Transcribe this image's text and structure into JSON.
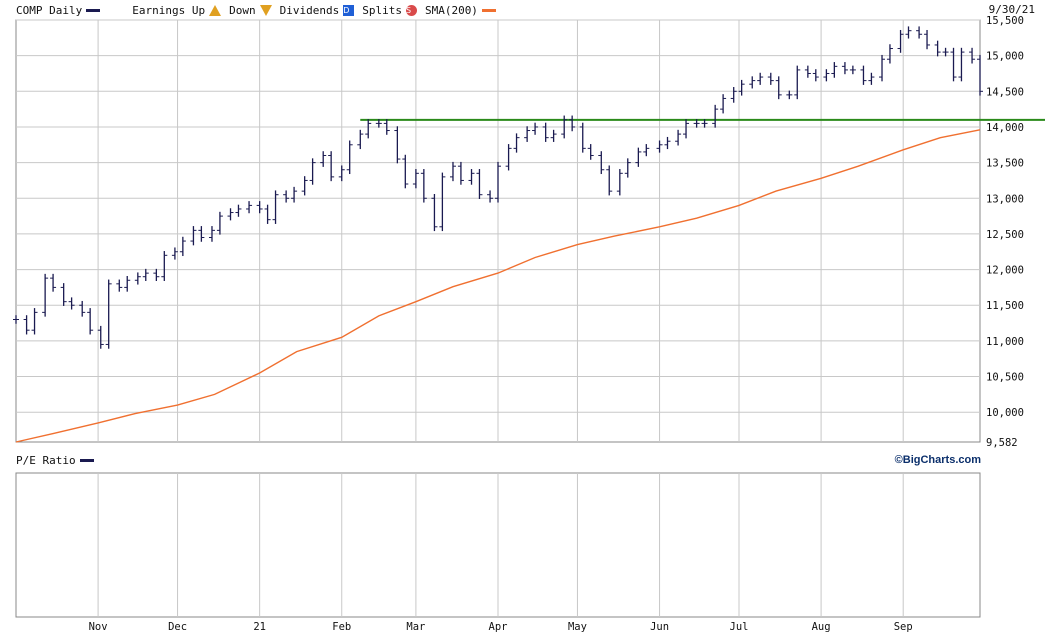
{
  "header": {
    "symbol_label": "COMP Daily",
    "earnings_label": "Earnings Up",
    "down_label": "Down",
    "earn_up_glyph": "E",
    "earn_down_glyph": "E",
    "dividends_label": "Dividends",
    "dividend_glyph": "D",
    "splits_label": "Splits",
    "split_glyph": "S",
    "sma_label": "SMA(200)",
    "date": "9/30/21"
  },
  "lower_panel": {
    "label": "P/E Ratio",
    "copyright": "©BigCharts.com"
  },
  "colors": {
    "price_bars": "#1a1a50",
    "sma": "#f07030",
    "resistance": "#2a8a1a",
    "grid": "#c8c8c8"
  },
  "chart_data": {
    "type": "line",
    "title": "COMP Daily",
    "ylabel": "",
    "xlabel": "",
    "y_ticks": [
      {
        "value": 15500,
        "label": "15,500"
      },
      {
        "value": 15000,
        "label": "15,000"
      },
      {
        "value": 14500,
        "label": "14,500"
      },
      {
        "value": 14000,
        "label": "14,000"
      },
      {
        "value": 13500,
        "label": "13,500"
      },
      {
        "value": 13000,
        "label": "13,000"
      },
      {
        "value": 12500,
        "label": "12,500"
      },
      {
        "value": 12000,
        "label": "12,000"
      },
      {
        "value": 11500,
        "label": "11,500"
      },
      {
        "value": 11000,
        "label": "11,000"
      },
      {
        "value": 10500,
        "label": "10,500"
      },
      {
        "value": 10000,
        "label": "10,000"
      },
      {
        "value": 9582,
        "label": "9,582"
      }
    ],
    "x_ticks": [
      {
        "date": "2020-11-01",
        "label": "Nov"
      },
      {
        "date": "2020-12-01",
        "label": "Dec"
      },
      {
        "date": "2021-01-01",
        "label": "21"
      },
      {
        "date": "2021-02-01",
        "label": "Feb"
      },
      {
        "date": "2021-03-01",
        "label": "Mar"
      },
      {
        "date": "2021-04-01",
        "label": "Apr"
      },
      {
        "date": "2021-05-01",
        "label": "May"
      },
      {
        "date": "2021-06-01",
        "label": "Jun"
      },
      {
        "date": "2021-07-01",
        "label": "Jul"
      },
      {
        "date": "2021-08-01",
        "label": "Aug"
      },
      {
        "date": "2021-09-01",
        "label": "Sep"
      }
    ],
    "x_range": [
      "2020-10-01",
      "2021-09-30"
    ],
    "y_range": [
      9582,
      15500
    ],
    "resistance_level": 14100,
    "grid": true,
    "series": [
      {
        "name": "COMP Daily",
        "style": "price-bars",
        "points": [
          [
            "2020-10-01",
            11300
          ],
          [
            "2020-10-05",
            11150
          ],
          [
            "2020-10-08",
            11400
          ],
          [
            "2020-10-12",
            11880
          ],
          [
            "2020-10-15",
            11750
          ],
          [
            "2020-10-19",
            11550
          ],
          [
            "2020-10-22",
            11500
          ],
          [
            "2020-10-26",
            11400
          ],
          [
            "2020-10-29",
            11150
          ],
          [
            "2020-11-02",
            10950
          ],
          [
            "2020-11-05",
            11800
          ],
          [
            "2020-11-09",
            11750
          ],
          [
            "2020-11-12",
            11850
          ],
          [
            "2020-11-16",
            11900
          ],
          [
            "2020-11-19",
            11950
          ],
          [
            "2020-11-23",
            11900
          ],
          [
            "2020-11-26",
            12200
          ],
          [
            "2020-11-30",
            12250
          ],
          [
            "2020-12-03",
            12400
          ],
          [
            "2020-12-07",
            12550
          ],
          [
            "2020-12-10",
            12450
          ],
          [
            "2020-12-14",
            12550
          ],
          [
            "2020-12-17",
            12750
          ],
          [
            "2020-12-21",
            12800
          ],
          [
            "2020-12-24",
            12850
          ],
          [
            "2020-12-28",
            12900
          ],
          [
            "2021-01-01",
            12850
          ],
          [
            "2021-01-04",
            12700
          ],
          [
            "2021-01-07",
            13050
          ],
          [
            "2021-01-11",
            13000
          ],
          [
            "2021-01-14",
            13100
          ],
          [
            "2021-01-18",
            13250
          ],
          [
            "2021-01-21",
            13500
          ],
          [
            "2021-01-25",
            13600
          ],
          [
            "2021-01-28",
            13300
          ],
          [
            "2021-02-01",
            13400
          ],
          [
            "2021-02-04",
            13750
          ],
          [
            "2021-02-08",
            13900
          ],
          [
            "2021-02-11",
            14050
          ],
          [
            "2021-02-15",
            14050
          ],
          [
            "2021-02-18",
            13950
          ],
          [
            "2021-02-22",
            13550
          ],
          [
            "2021-02-25",
            13200
          ],
          [
            "2021-03-01",
            13350
          ],
          [
            "2021-03-04",
            13000
          ],
          [
            "2021-03-08",
            12600
          ],
          [
            "2021-03-11",
            13300
          ],
          [
            "2021-03-15",
            13450
          ],
          [
            "2021-03-18",
            13250
          ],
          [
            "2021-03-22",
            13350
          ],
          [
            "2021-03-25",
            13050
          ],
          [
            "2021-03-29",
            13000
          ],
          [
            "2021-04-01",
            13450
          ],
          [
            "2021-04-05",
            13700
          ],
          [
            "2021-04-08",
            13850
          ],
          [
            "2021-04-12",
            13950
          ],
          [
            "2021-04-15",
            14000
          ],
          [
            "2021-04-19",
            13850
          ],
          [
            "2021-04-22",
            13900
          ],
          [
            "2021-04-26",
            14100
          ],
          [
            "2021-04-29",
            14000
          ],
          [
            "2021-05-03",
            13700
          ],
          [
            "2021-05-06",
            13600
          ],
          [
            "2021-05-10",
            13400
          ],
          [
            "2021-05-13",
            13100
          ],
          [
            "2021-05-17",
            13350
          ],
          [
            "2021-05-20",
            13500
          ],
          [
            "2021-05-24",
            13650
          ],
          [
            "2021-05-27",
            13700
          ],
          [
            "2021-06-01",
            13750
          ],
          [
            "2021-06-04",
            13800
          ],
          [
            "2021-06-08",
            13900
          ],
          [
            "2021-06-11",
            14050
          ],
          [
            "2021-06-15",
            14050
          ],
          [
            "2021-06-18",
            14050
          ],
          [
            "2021-06-22",
            14250
          ],
          [
            "2021-06-25",
            14400
          ],
          [
            "2021-06-29",
            14500
          ],
          [
            "2021-07-02",
            14600
          ],
          [
            "2021-07-06",
            14650
          ],
          [
            "2021-07-09",
            14700
          ],
          [
            "2021-07-13",
            14650
          ],
          [
            "2021-07-16",
            14450
          ],
          [
            "2021-07-20",
            14450
          ],
          [
            "2021-07-23",
            14800
          ],
          [
            "2021-07-27",
            14750
          ],
          [
            "2021-07-30",
            14700
          ],
          [
            "2021-08-03",
            14750
          ],
          [
            "2021-08-06",
            14850
          ],
          [
            "2021-08-10",
            14800
          ],
          [
            "2021-08-13",
            14800
          ],
          [
            "2021-08-17",
            14650
          ],
          [
            "2021-08-20",
            14700
          ],
          [
            "2021-08-24",
            14950
          ],
          [
            "2021-08-27",
            15100
          ],
          [
            "2021-08-31",
            15300
          ],
          [
            "2021-09-03",
            15350
          ],
          [
            "2021-09-07",
            15300
          ],
          [
            "2021-09-10",
            15150
          ],
          [
            "2021-09-14",
            15050
          ],
          [
            "2021-09-17",
            15050
          ],
          [
            "2021-09-20",
            14700
          ],
          [
            "2021-09-23",
            15050
          ],
          [
            "2021-09-27",
            14950
          ],
          [
            "2021-09-30",
            14500
          ]
        ]
      },
      {
        "name": "SMA(200)",
        "style": "line",
        "points": [
          [
            "2020-10-01",
            9582
          ],
          [
            "2020-10-15",
            9700
          ],
          [
            "2020-11-01",
            9850
          ],
          [
            "2020-11-15",
            9980
          ],
          [
            "2020-12-01",
            10100
          ],
          [
            "2020-12-15",
            10250
          ],
          [
            "2021-01-01",
            10550
          ],
          [
            "2021-01-15",
            10850
          ],
          [
            "2021-02-01",
            11050
          ],
          [
            "2021-02-15",
            11350
          ],
          [
            "2021-03-01",
            11550
          ],
          [
            "2021-03-15",
            11760
          ],
          [
            "2021-04-01",
            11950
          ],
          [
            "2021-04-15",
            12170
          ],
          [
            "2021-05-01",
            12350
          ],
          [
            "2021-05-15",
            12470
          ],
          [
            "2021-06-01",
            12600
          ],
          [
            "2021-06-15",
            12720
          ],
          [
            "2021-07-01",
            12900
          ],
          [
            "2021-07-15",
            13100
          ],
          [
            "2021-08-01",
            13280
          ],
          [
            "2021-08-15",
            13450
          ],
          [
            "2021-09-01",
            13680
          ],
          [
            "2021-09-15",
            13850
          ],
          [
            "2021-09-30",
            13960
          ]
        ]
      }
    ]
  }
}
